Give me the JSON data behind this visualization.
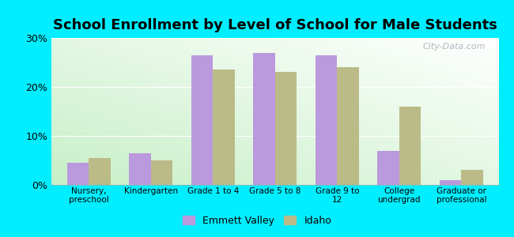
{
  "title": "School Enrollment by Level of School for Male Students",
  "categories": [
    "Nursery,\npreschool",
    "Kindergarten",
    "Grade 1 to 4",
    "Grade 5 to 8",
    "Grade 9 to\n12",
    "College\nundergrad",
    "Graduate or\nprofessional"
  ],
  "emmett_valley": [
    4.5,
    6.5,
    26.5,
    27.0,
    26.5,
    7.0,
    1.0
  ],
  "idaho": [
    5.5,
    5.0,
    23.5,
    23.0,
    24.0,
    16.0,
    3.0
  ],
  "emmett_color": "#bb99dd",
  "idaho_color": "#bbbb88",
  "background_color": "#00eeff",
  "ylim": [
    0,
    30
  ],
  "yticks": [
    0,
    10,
    20,
    30
  ],
  "ytick_labels": [
    "0%",
    "10%",
    "20%",
    "30%"
  ],
  "legend_emmett": "Emmett Valley",
  "legend_idaho": "Idaho",
  "bar_width": 0.35,
  "title_fontsize": 13,
  "watermark": "City-Data.com"
}
